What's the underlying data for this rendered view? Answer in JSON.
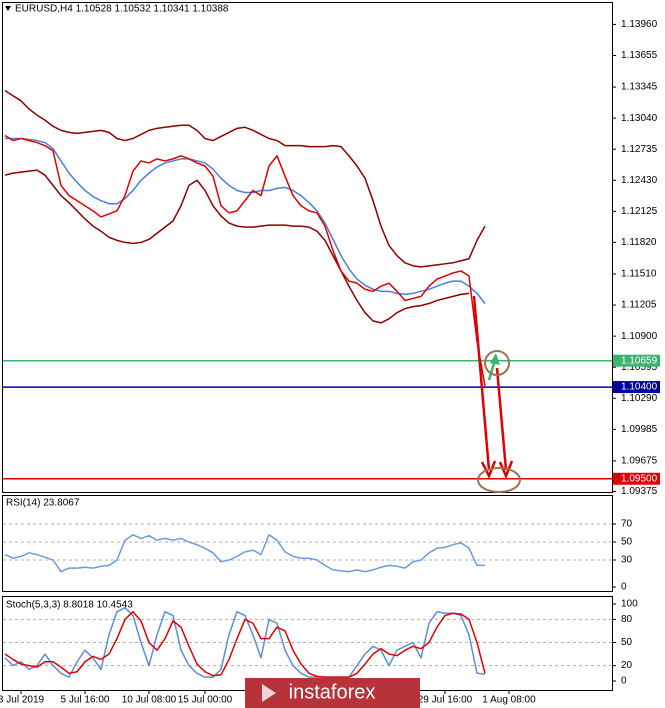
{
  "chart_data": [
    {
      "type": "line",
      "title": "EURUSD,H4  1.10528 1.10532 1.10341 1.10388",
      "categories": [
        null,
        null,
        "3 Jul 2019",
        null,
        null,
        null,
        null,
        null,
        null,
        null,
        "5 Jul 16:00",
        null,
        null,
        null,
        null,
        null,
        null,
        null,
        "10 Jul 08:00",
        null,
        null,
        null,
        null,
        null,
        null,
        "15 Jul 00:00",
        null,
        null,
        null,
        null,
        null,
        null,
        null,
        null,
        null,
        null,
        null,
        null,
        null,
        null,
        null,
        null,
        null,
        null,
        null,
        null,
        null,
        null,
        null,
        null,
        null,
        null,
        null,
        null,
        null,
        "29 Jul 16:00",
        null,
        null,
        null,
        null,
        null,
        null,
        null,
        "1 Aug 08:00"
      ],
      "ylim": [
        1.0937,
        1.1418
      ],
      "yticks": [
        {
          "value": 1.1396,
          "label": "1.13960"
        },
        {
          "value": 1.13655,
          "label": "1.13655"
        },
        {
          "value": 1.13345,
          "label": "1.13345"
        },
        {
          "value": 1.1304,
          "label": "1.13040"
        },
        {
          "value": 1.12735,
          "label": "1.12735"
        },
        {
          "value": 1.1243,
          "label": "1.12430"
        },
        {
          "value": 1.12125,
          "label": "1.12125"
        },
        {
          "value": 1.1182,
          "label": "1.11820"
        },
        {
          "value": 1.1151,
          "label": "1.11510"
        },
        {
          "value": 1.11205,
          "label": "1.11205"
        },
        {
          "value": 1.109,
          "label": "1.10900"
        },
        {
          "value": 1.10595,
          "label": "1.10595"
        },
        {
          "value": 1.1029,
          "label": "1.10290"
        },
        {
          "value": 1.09985,
          "label": "1.09985"
        },
        {
          "value": 1.09675,
          "label": "1.09675"
        },
        {
          "value": 1.09375,
          "label": "1.09375"
        }
      ],
      "grid": false,
      "series": [
        {
          "color": "#8b0000",
          "values": [
            1.1331,
            1.1326,
            1.1321,
            1.1313,
            1.1307,
            1.1302,
            1.1296,
            1.1292,
            1.129,
            1.1289,
            1.129,
            1.1291,
            1.1292,
            1.129,
            1.1284,
            1.1282,
            1.1284,
            1.1288,
            1.1292,
            1.1294,
            1.1295,
            1.1296,
            1.1297,
            1.1297,
            1.1292,
            1.1284,
            1.1282,
            1.1286,
            1.129,
            1.1294,
            1.1295,
            1.1292,
            1.1288,
            1.1284,
            1.1282,
            1.1277,
            1.1277,
            1.1277,
            1.1276,
            1.1276,
            1.1276,
            1.1277,
            1.1276,
            1.1267,
            1.1257,
            1.1245,
            1.1223,
            1.1198,
            1.1179,
            1.1169,
            1.1162,
            1.1159,
            1.1158,
            1.1159,
            1.116,
            1.1161,
            1.1162,
            1.1164,
            1.1166,
            1.1184,
            1.1198,
            null,
            null,
            null
          ]
        },
        {
          "color": "#8b0000",
          "values": [
            1.1248,
            1.125,
            1.1251,
            1.1252,
            1.1253,
            1.1248,
            1.1238,
            1.1228,
            1.1221,
            1.1213,
            1.1205,
            1.1198,
            1.1193,
            1.1187,
            1.1184,
            1.1182,
            1.1181,
            1.1182,
            1.1185,
            1.1191,
            1.1197,
            1.1203,
            1.1218,
            1.1238,
            1.1243,
            1.1233,
            1.1218,
            1.1208,
            1.1201,
            1.1198,
            1.1197,
            1.1197,
            1.1198,
            1.1199,
            1.1199,
            1.1199,
            1.1198,
            1.1198,
            1.1197,
            1.1193,
            1.1184,
            1.1169,
            1.1154,
            1.1139,
            1.1125,
            1.1113,
            1.1105,
            1.1103,
            1.1107,
            1.1113,
            1.1117,
            1.1119,
            1.112,
            1.1122,
            1.1125,
            1.1127,
            1.1129,
            1.1131,
            1.1132,
            null,
            null,
            null,
            null,
            null
          ]
        },
        {
          "color": "#4a7fd8",
          "values": [
            1.1284,
            1.1284,
            1.1284,
            1.1283,
            1.1282,
            1.128,
            1.1274,
            1.1262,
            1.125,
            1.1241,
            1.1233,
            1.1227,
            1.1223,
            1.122,
            1.122,
            1.1225,
            1.1233,
            1.1243,
            1.125,
            1.1256,
            1.126,
            1.1262,
            1.1264,
            1.1264,
            1.1262,
            1.126,
            1.1254,
            1.1245,
            1.1238,
            1.1233,
            1.1231,
            1.1231,
            1.1233,
            1.1233,
            1.1235,
            1.1236,
            1.1233,
            1.1228,
            1.1221,
            1.1213,
            1.1201,
            1.1185,
            1.1169,
            1.1156,
            1.1146,
            1.114,
            1.1136,
            1.1134,
            1.1134,
            1.1132,
            1.1131,
            1.1132,
            1.1134,
            1.1136,
            1.1139,
            1.1142,
            1.1144,
            1.1144,
            1.1139,
            1.1132,
            1.1122,
            null,
            null,
            null
          ]
        },
        {
          "color": "#e00000",
          "values": [
            1.1287,
            1.1282,
            1.1284,
            1.1282,
            1.128,
            1.1277,
            1.1272,
            1.1238,
            1.1228,
            1.1223,
            1.1218,
            1.1213,
            1.1207,
            1.121,
            1.1213,
            1.1228,
            1.1252,
            1.1262,
            1.126,
            1.1264,
            1.1262,
            1.1264,
            1.1267,
            1.1264,
            1.126,
            1.1257,
            1.1247,
            1.1218,
            1.1211,
            1.1213,
            1.1223,
            1.1233,
            1.1228,
            1.1257,
            1.1267,
            1.1247,
            1.1228,
            1.1218,
            1.1213,
            1.1211,
            1.1198,
            1.1174,
            1.1154,
            1.1144,
            1.1142,
            1.1136,
            1.1134,
            1.1139,
            1.1142,
            1.1134,
            1.1125,
            1.1127,
            1.1129,
            1.1139,
            1.1146,
            1.1149,
            1.1152,
            1.1154,
            1.1149,
            1.1085,
            1.1041,
            null,
            null,
            null
          ]
        }
      ],
      "levels": [
        {
          "value": 1.10659,
          "label": "1.10659",
          "color": "#3cb371"
        },
        {
          "value": 1.104,
          "label": "1.10400",
          "color": "#0000a0"
        },
        {
          "value": 1.095,
          "label": "1.09500",
          "color": "#e00000"
        }
      ]
    },
    {
      "type": "line",
      "title": "RSI(14) 23.8067",
      "ylim": [
        0,
        100
      ],
      "yticks": [
        70,
        50,
        30,
        0
      ],
      "grid": true,
      "series": [
        {
          "color": "#6a9be0",
          "values": [
            36,
            32,
            34,
            38,
            36,
            33,
            30,
            17,
            21,
            21,
            22,
            21,
            23,
            24,
            30,
            52,
            58,
            54,
            57,
            52,
            54,
            52,
            54,
            50,
            47,
            43,
            38,
            28,
            30,
            34,
            39,
            41,
            36,
            58,
            52,
            39,
            34,
            32,
            32,
            30,
            24,
            19,
            18,
            17,
            19,
            17,
            19,
            22,
            24,
            23,
            21,
            28,
            30,
            38,
            43,
            44,
            47,
            49,
            43,
            24,
            24,
            null,
            null,
            null
          ]
        }
      ]
    },
    {
      "type": "line",
      "title": "Stoch(5,3,3) 8.8018 10.4543",
      "ylim": [
        0,
        100
      ],
      "yticks": [
        100,
        80,
        50,
        20,
        0
      ],
      "grid": true,
      "series": [
        {
          "color": "#5b8fd8",
          "values": [
            30,
            20,
            25,
            15,
            20,
            35,
            20,
            10,
            5,
            25,
            40,
            30,
            15,
            60,
            90,
            95,
            85,
            50,
            20,
            60,
            90,
            85,
            40,
            20,
            10,
            5,
            5,
            15,
            60,
            90,
            85,
            60,
            30,
            80,
            75,
            40,
            20,
            10,
            5,
            5,
            5,
            5,
            5,
            5,
            20,
            35,
            45,
            40,
            20,
            40,
            45,
            50,
            30,
            75,
            90,
            88,
            88,
            85,
            60,
            10,
            9,
            null,
            null,
            null
          ]
        },
        {
          "color": "#e00000",
          "values": [
            35,
            28,
            22,
            20,
            18,
            25,
            25,
            18,
            10,
            12,
            25,
            32,
            28,
            35,
            55,
            80,
            90,
            78,
            50,
            40,
            55,
            78,
            70,
            45,
            22,
            12,
            7,
            8,
            28,
            55,
            80,
            75,
            55,
            55,
            70,
            65,
            40,
            22,
            10,
            6,
            5,
            5,
            5,
            5,
            10,
            22,
            35,
            42,
            35,
            33,
            40,
            45,
            42,
            50,
            70,
            85,
            88,
            87,
            80,
            50,
            10,
            null,
            null,
            null
          ]
        }
      ]
    }
  ],
  "watermark": "instaforex"
}
